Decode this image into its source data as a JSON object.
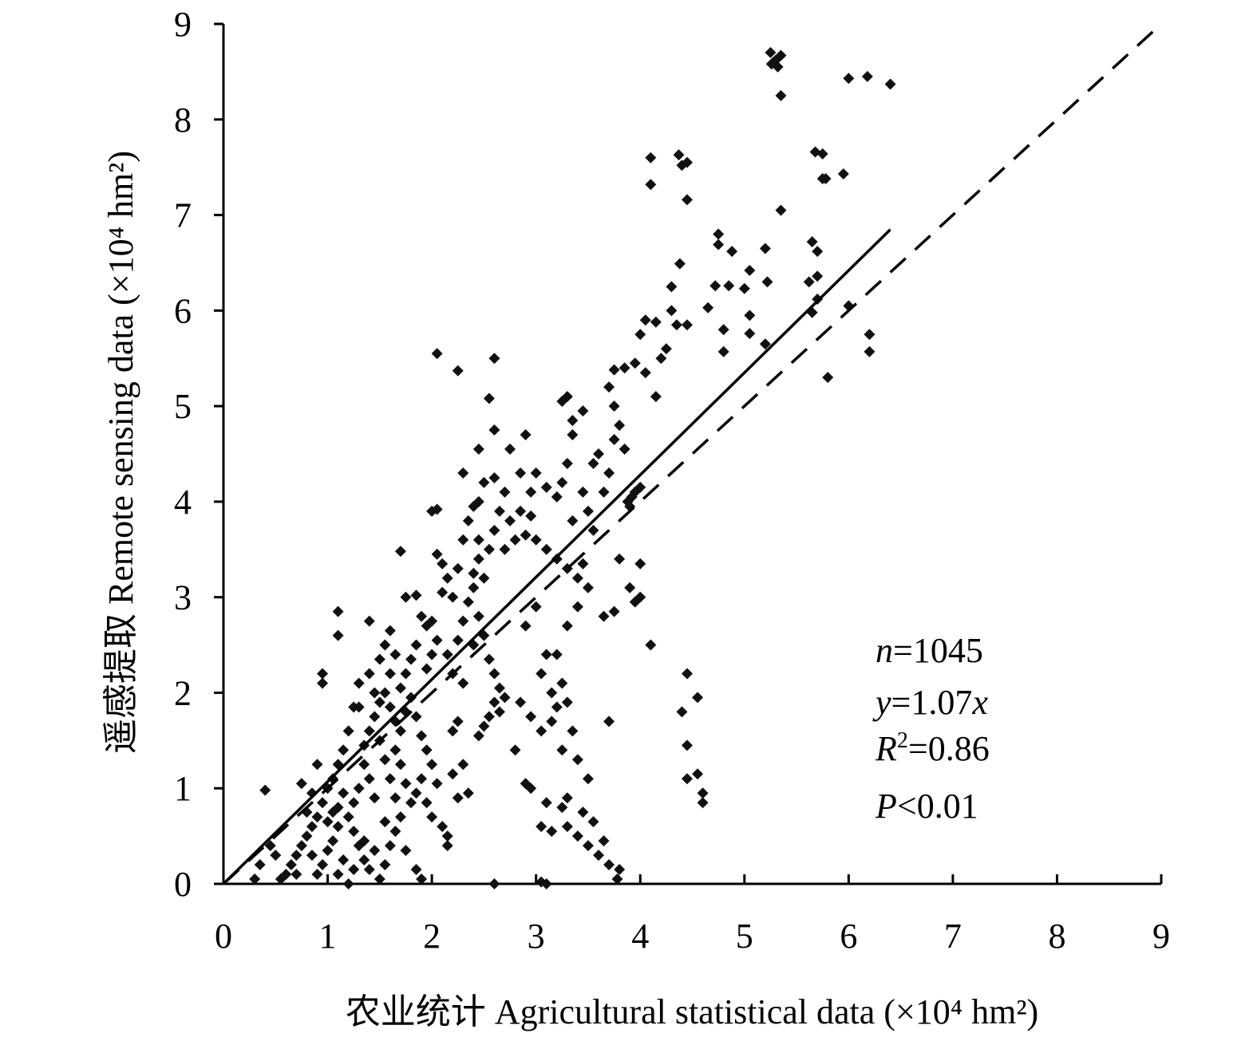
{
  "chart_data": {
    "type": "scatter",
    "xlabel": "农业统计 Agricultural statistical data (×10⁴ hm²)",
    "ylabel": "遥感提取 Remote sensing data (×10⁴ hm²)",
    "xlim": [
      0,
      9
    ],
    "ylim": [
      0,
      9
    ],
    "x_ticks": [
      "0",
      "1",
      "2",
      "3",
      "4",
      "5",
      "6",
      "7",
      "8",
      "9"
    ],
    "y_ticks": [
      "0",
      "1",
      "2",
      "3",
      "4",
      "5",
      "6",
      "7",
      "8",
      "9"
    ],
    "fit_line": {
      "slope": 1.07,
      "x_range": [
        0,
        6.4
      ],
      "style": "solid"
    },
    "identity_line": {
      "slope": 1.0,
      "x_range": [
        0,
        9
      ],
      "style": "dashed"
    },
    "stats": {
      "n_sym": "n",
      "n_val": "=1045",
      "y_sym": "y",
      "y_mid": "=1.07",
      "y_x": "x",
      "r_sym": "R",
      "r_sup": "2",
      "r_val": "=0.86",
      "p_sym": "P",
      "p_val": "<0.01"
    },
    "points": [
      [
        5.25,
        8.7
      ],
      [
        5.28,
        8.6
      ],
      [
        5.32,
        8.55
      ],
      [
        5.35,
        8.67
      ],
      [
        5.3,
        8.62
      ],
      [
        5.26,
        8.58
      ],
      [
        5.35,
        8.25
      ],
      [
        6.0,
        8.43
      ],
      [
        6.18,
        8.45
      ],
      [
        6.4,
        8.37
      ],
      [
        4.1,
        7.6
      ],
      [
        4.1,
        7.32
      ],
      [
        4.37,
        7.63
      ],
      [
        4.4,
        7.52
      ],
      [
        4.45,
        7.55
      ],
      [
        4.45,
        7.16
      ],
      [
        5.35,
        7.05
      ],
      [
        5.68,
        7.66
      ],
      [
        5.75,
        7.64
      ],
      [
        5.75,
        7.38
      ],
      [
        5.78,
        7.38
      ],
      [
        5.95,
        7.43
      ],
      [
        4.75,
        6.8
      ],
      [
        4.75,
        6.69
      ],
      [
        4.88,
        6.62
      ],
      [
        5.05,
        6.42
      ],
      [
        5.2,
        6.65
      ],
      [
        4.72,
        6.26
      ],
      [
        4.85,
        6.26
      ],
      [
        5.0,
        6.23
      ],
      [
        5.22,
        6.3
      ],
      [
        4.38,
        6.49
      ],
      [
        4.65,
        6.03
      ],
      [
        5.05,
        5.95
      ],
      [
        4.8,
        5.8
      ],
      [
        4.8,
        5.57
      ],
      [
        5.05,
        5.76
      ],
      [
        5.2,
        5.65
      ],
      [
        5.65,
        6.72
      ],
      [
        5.7,
        6.62
      ],
      [
        5.62,
        6.3
      ],
      [
        5.7,
        6.36
      ],
      [
        5.7,
        6.12
      ],
      [
        5.65,
        5.98
      ],
      [
        6.2,
        5.75
      ],
      [
        6.2,
        5.57
      ],
      [
        5.8,
        5.3
      ],
      [
        6.0,
        6.05
      ],
      [
        4.3,
        6.25
      ],
      [
        4.3,
        6.0
      ],
      [
        4.05,
        5.9
      ],
      [
        4.15,
        5.88
      ],
      [
        4.35,
        5.85
      ],
      [
        4.45,
        5.85
      ],
      [
        4.25,
        5.6
      ],
      [
        4.2,
        5.5
      ],
      [
        4.05,
        5.35
      ],
      [
        4.15,
        5.1
      ],
      [
        4.0,
        5.75
      ],
      [
        3.95,
        5.45
      ],
      [
        3.85,
        5.4
      ],
      [
        3.75,
        5.38
      ],
      [
        3.7,
        5.2
      ],
      [
        3.75,
        5.0
      ],
      [
        3.8,
        4.8
      ],
      [
        3.75,
        4.65
      ],
      [
        3.85,
        4.55
      ],
      [
        3.6,
        4.5
      ],
      [
        3.55,
        4.4
      ],
      [
        3.7,
        4.3
      ],
      [
        3.65,
        4.1
      ],
      [
        3.45,
        4.95
      ],
      [
        3.35,
        4.85
      ],
      [
        3.25,
        5.05
      ],
      [
        3.3,
        5.1
      ],
      [
        3.35,
        4.7
      ],
      [
        3.3,
        4.4
      ],
      [
        3.25,
        4.2
      ],
      [
        3.2,
        4.05
      ],
      [
        3.45,
        4.1
      ],
      [
        3.5,
        3.9
      ],
      [
        3.35,
        3.8
      ],
      [
        3.55,
        3.7
      ],
      [
        2.05,
        5.55
      ],
      [
        2.25,
        5.37
      ],
      [
        2.6,
        5.5
      ],
      [
        2.55,
        5.08
      ],
      [
        2.6,
        4.75
      ],
      [
        2.75,
        4.55
      ],
      [
        2.9,
        4.7
      ],
      [
        2.45,
        4.55
      ],
      [
        2.3,
        4.3
      ],
      [
        2.5,
        4.2
      ],
      [
        2.45,
        4.0
      ],
      [
        2.6,
        4.25
      ],
      [
        2.7,
        4.1
      ],
      [
        2.85,
        4.3
      ],
      [
        2.95,
        4.1
      ],
      [
        3.0,
        4.3
      ],
      [
        3.1,
        4.15
      ],
      [
        2.65,
        3.9
      ],
      [
        2.75,
        3.8
      ],
      [
        2.85,
        3.9
      ],
      [
        2.95,
        3.85
      ],
      [
        2.9,
        3.65
      ],
      [
        2.8,
        3.6
      ],
      [
        2.6,
        3.7
      ],
      [
        2.7,
        3.5
      ],
      [
        3.0,
        3.6
      ],
      [
        3.1,
        3.5
      ],
      [
        3.2,
        3.4
      ],
      [
        3.3,
        3.3
      ],
      [
        3.4,
        3.2
      ],
      [
        3.45,
        3.35
      ],
      [
        3.5,
        3.1
      ],
      [
        3.4,
        2.9
      ],
      [
        3.3,
        2.7
      ],
      [
        3.2,
        2.4
      ],
      [
        3.25,
        2.1
      ],
      [
        3.3,
        1.9
      ],
      [
        3.15,
        1.7
      ],
      [
        3.35,
        1.6
      ],
      [
        3.25,
        1.4
      ],
      [
        3.4,
        1.3
      ],
      [
        3.5,
        1.1
      ],
      [
        3.1,
        0.85
      ],
      [
        3.25,
        0.8
      ],
      [
        3.3,
        0.6
      ],
      [
        3.4,
        0.5
      ],
      [
        3.5,
        0.4
      ],
      [
        3.6,
        0.3
      ],
      [
        3.7,
        0.2
      ],
      [
        3.15,
        0.55
      ],
      [
        3.3,
        0.9
      ],
      [
        3.45,
        0.75
      ],
      [
        3.55,
        0.65
      ],
      [
        3.65,
        0.45
      ],
      [
        3.8,
        0.15
      ],
      [
        3.78,
        0.05
      ],
      [
        3.0,
        2.9
      ],
      [
        2.9,
        2.7
      ],
      [
        3.1,
        2.4
      ],
      [
        3.05,
        2.2
      ],
      [
        3.15,
        2.0
      ],
      [
        3.2,
        1.85
      ],
      [
        3.05,
        1.6
      ],
      [
        2.95,
        1.75
      ],
      [
        2.85,
        1.9
      ],
      [
        2.8,
        1.4
      ],
      [
        2.9,
        1.05
      ],
      [
        2.95,
        1.0
      ],
      [
        3.05,
        0.6
      ],
      [
        3.1,
        0.0
      ],
      [
        3.8,
        3.4
      ],
      [
        3.9,
        3.1
      ],
      [
        3.95,
        2.95
      ],
      [
        4.0,
        3.0
      ],
      [
        4.1,
        2.5
      ],
      [
        3.75,
        2.85
      ],
      [
        3.65,
        2.8
      ],
      [
        3.7,
        1.7
      ],
      [
        4.45,
        2.2
      ],
      [
        4.55,
        1.95
      ],
      [
        4.4,
        1.8
      ],
      [
        4.45,
        1.45
      ],
      [
        4.55,
        1.15
      ],
      [
        4.45,
        1.1
      ],
      [
        4.6,
        0.95
      ],
      [
        4.6,
        0.85
      ],
      [
        4.0,
        3.35
      ],
      [
        3.88,
        4.0
      ],
      [
        3.92,
        4.05
      ],
      [
        3.95,
        4.1
      ],
      [
        4.0,
        4.15
      ],
      [
        3.9,
        3.95
      ],
      [
        2.0,
        3.9
      ],
      [
        2.05,
        3.92
      ],
      [
        2.05,
        3.45
      ],
      [
        2.1,
        3.35
      ],
      [
        2.15,
        3.2
      ],
      [
        2.1,
        3.05
      ],
      [
        2.2,
        3.0
      ],
      [
        2.25,
        3.3
      ],
      [
        2.3,
        3.6
      ],
      [
        2.35,
        3.8
      ],
      [
        2.4,
        3.95
      ],
      [
        2.45,
        3.4
      ],
      [
        2.5,
        3.2
      ],
      [
        2.4,
        3.1
      ],
      [
        2.35,
        2.95
      ],
      [
        2.45,
        2.8
      ],
      [
        2.5,
        2.6
      ],
      [
        2.4,
        2.5
      ],
      [
        2.3,
        2.75
      ],
      [
        2.25,
        2.55
      ],
      [
        2.15,
        2.4
      ],
      [
        2.2,
        2.2
      ],
      [
        2.3,
        2.1
      ],
      [
        2.55,
        2.35
      ],
      [
        2.6,
        2.2
      ],
      [
        2.65,
        2.05
      ],
      [
        2.6,
        1.9
      ],
      [
        2.55,
        1.75
      ],
      [
        2.5,
        1.65
      ],
      [
        2.45,
        1.55
      ],
      [
        2.65,
        1.8
      ],
      [
        2.7,
        1.95
      ],
      [
        2.45,
        3.6
      ],
      [
        2.55,
        3.5
      ],
      [
        2.4,
        3.25
      ],
      [
        1.7,
        3.48
      ],
      [
        1.75,
        3.0
      ],
      [
        1.85,
        3.02
      ],
      [
        1.9,
        2.8
      ],
      [
        1.95,
        2.7
      ],
      [
        2.0,
        2.75
      ],
      [
        2.05,
        2.55
      ],
      [
        2.0,
        2.4
      ],
      [
        1.95,
        2.25
      ],
      [
        1.85,
        2.5
      ],
      [
        1.8,
        2.35
      ],
      [
        1.75,
        2.2
      ],
      [
        1.7,
        2.05
      ],
      [
        1.65,
        2.4
      ],
      [
        1.6,
        2.2
      ],
      [
        1.55,
        2.0
      ],
      [
        1.6,
        1.85
      ],
      [
        1.65,
        1.7
      ],
      [
        1.7,
        1.6
      ],
      [
        1.75,
        1.8
      ],
      [
        1.8,
        1.95
      ],
      [
        1.85,
        1.75
      ],
      [
        1.9,
        1.55
      ],
      [
        1.95,
        1.4
      ],
      [
        2.0,
        1.25
      ],
      [
        1.9,
        1.1
      ],
      [
        1.85,
        0.95
      ],
      [
        1.95,
        0.85
      ],
      [
        2.0,
        0.7
      ],
      [
        2.1,
        0.6
      ],
      [
        2.15,
        0.5
      ],
      [
        2.05,
        1.05
      ],
      [
        2.2,
        1.15
      ],
      [
        2.25,
        0.9
      ],
      [
        2.3,
        1.25
      ],
      [
        2.35,
        0.95
      ],
      [
        2.2,
        1.6
      ],
      [
        2.25,
        1.7
      ],
      [
        2.15,
        0.4
      ],
      [
        1.5,
        1.9
      ],
      [
        1.45,
        1.75
      ],
      [
        1.4,
        1.6
      ],
      [
        1.35,
        1.45
      ],
      [
        1.5,
        1.5
      ],
      [
        1.55,
        1.3
      ],
      [
        1.6,
        1.1
      ],
      [
        1.65,
        1.4
      ],
      [
        1.7,
        1.25
      ],
      [
        1.75,
        1.05
      ],
      [
        1.8,
        0.85
      ],
      [
        1.7,
        0.7
      ],
      [
        1.65,
        0.55
      ],
      [
        1.6,
        0.4
      ],
      [
        1.55,
        0.2
      ],
      [
        1.5,
        0.05
      ],
      [
        1.45,
        0.9
      ],
      [
        1.4,
        1.1
      ],
      [
        1.35,
        1.25
      ],
      [
        1.3,
        1.0
      ],
      [
        1.25,
        0.85
      ],
      [
        1.2,
        0.7
      ],
      [
        1.25,
        0.55
      ],
      [
        1.3,
        0.4
      ],
      [
        1.35,
        0.25
      ],
      [
        1.4,
        0.15
      ],
      [
        1.45,
        2.0
      ],
      [
        1.4,
        2.2
      ],
      [
        1.3,
        2.1
      ],
      [
        1.25,
        1.85
      ],
      [
        1.2,
        1.6
      ],
      [
        1.15,
        1.4
      ],
      [
        1.1,
        1.25
      ],
      [
        1.05,
        1.1
      ],
      [
        1.0,
        1.0
      ],
      [
        0.95,
        0.85
      ],
      [
        0.9,
        0.7
      ],
      [
        0.85,
        0.6
      ],
      [
        0.8,
        0.5
      ],
      [
        0.75,
        0.4
      ],
      [
        0.7,
        0.3
      ],
      [
        0.65,
        0.2
      ],
      [
        0.6,
        0.1
      ],
      [
        0.55,
        0.05
      ],
      [
        1.1,
        0.6
      ],
      [
        1.05,
        0.45
      ],
      [
        1.0,
        0.35
      ],
      [
        0.95,
        0.2
      ],
      [
        0.9,
        0.1
      ],
      [
        1.15,
        0.25
      ],
      [
        1.1,
        0.1
      ],
      [
        1.2,
        0.0
      ],
      [
        0.95,
        2.2
      ],
      [
        0.95,
        2.1
      ],
      [
        1.1,
        2.85
      ],
      [
        1.1,
        2.6
      ],
      [
        1.4,
        2.75
      ],
      [
        0.4,
        0.98
      ],
      [
        0.45,
        0.4
      ],
      [
        0.35,
        0.2
      ],
      [
        0.3,
        0.05
      ],
      [
        0.5,
        0.3
      ],
      [
        0.8,
        0.75
      ],
      [
        0.85,
        0.95
      ],
      [
        0.75,
        1.05
      ],
      [
        0.9,
        1.25
      ],
      [
        1.3,
        1.85
      ],
      [
        1.5,
        2.35
      ],
      [
        1.55,
        2.5
      ],
      [
        1.6,
        2.65
      ],
      [
        1.0,
        0.65
      ],
      [
        1.05,
        0.75
      ],
      [
        1.1,
        0.8
      ],
      [
        1.15,
        0.95
      ],
      [
        0.85,
        0.3
      ],
      [
        0.7,
        0.1
      ],
      [
        1.25,
        0.15
      ],
      [
        1.35,
        0.45
      ],
      [
        1.45,
        0.35
      ],
      [
        1.55,
        0.65
      ],
      [
        1.65,
        0.9
      ],
      [
        1.75,
        0.35
      ],
      [
        1.85,
        0.15
      ],
      [
        1.9,
        0.05
      ],
      [
        2.6,
        0.0
      ],
      [
        3.05,
        0.02
      ]
    ]
  }
}
